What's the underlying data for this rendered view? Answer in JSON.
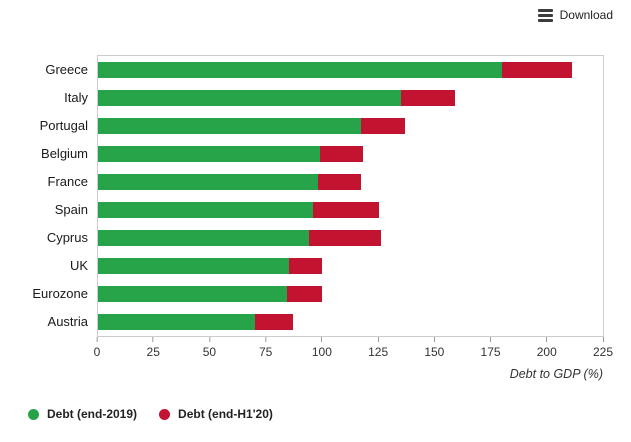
{
  "header": {
    "download_label": "Download"
  },
  "chart_data": {
    "type": "bar",
    "orientation": "horizontal",
    "stacked": true,
    "title": "",
    "xlabel": "Debt to GDP (%)",
    "ylabel": "",
    "xlim": [
      0,
      225
    ],
    "xticks": [
      0,
      25,
      50,
      75,
      100,
      125,
      150,
      175,
      200,
      225
    ],
    "grid": false,
    "legend_position": "bottom",
    "categories": [
      "Greece",
      "Italy",
      "Portugal",
      "Belgium",
      "France",
      "Spain",
      "Cyprus",
      "UK",
      "Eurozone",
      "Austria"
    ],
    "series": [
      {
        "name": "Debt (end-2019)",
        "color": "#27a349",
        "values": [
          180,
          135,
          117,
          99,
          98,
          96,
          94,
          85,
          84,
          70
        ]
      },
      {
        "name": "Debt (end-H1'20)",
        "color": "#c21330",
        "values": [
          31,
          24,
          20,
          19,
          19,
          29,
          32,
          15,
          16,
          17
        ]
      }
    ],
    "totals_end_h1_20": [
      211,
      159,
      137,
      118,
      117,
      125,
      126,
      100,
      100,
      87
    ]
  }
}
